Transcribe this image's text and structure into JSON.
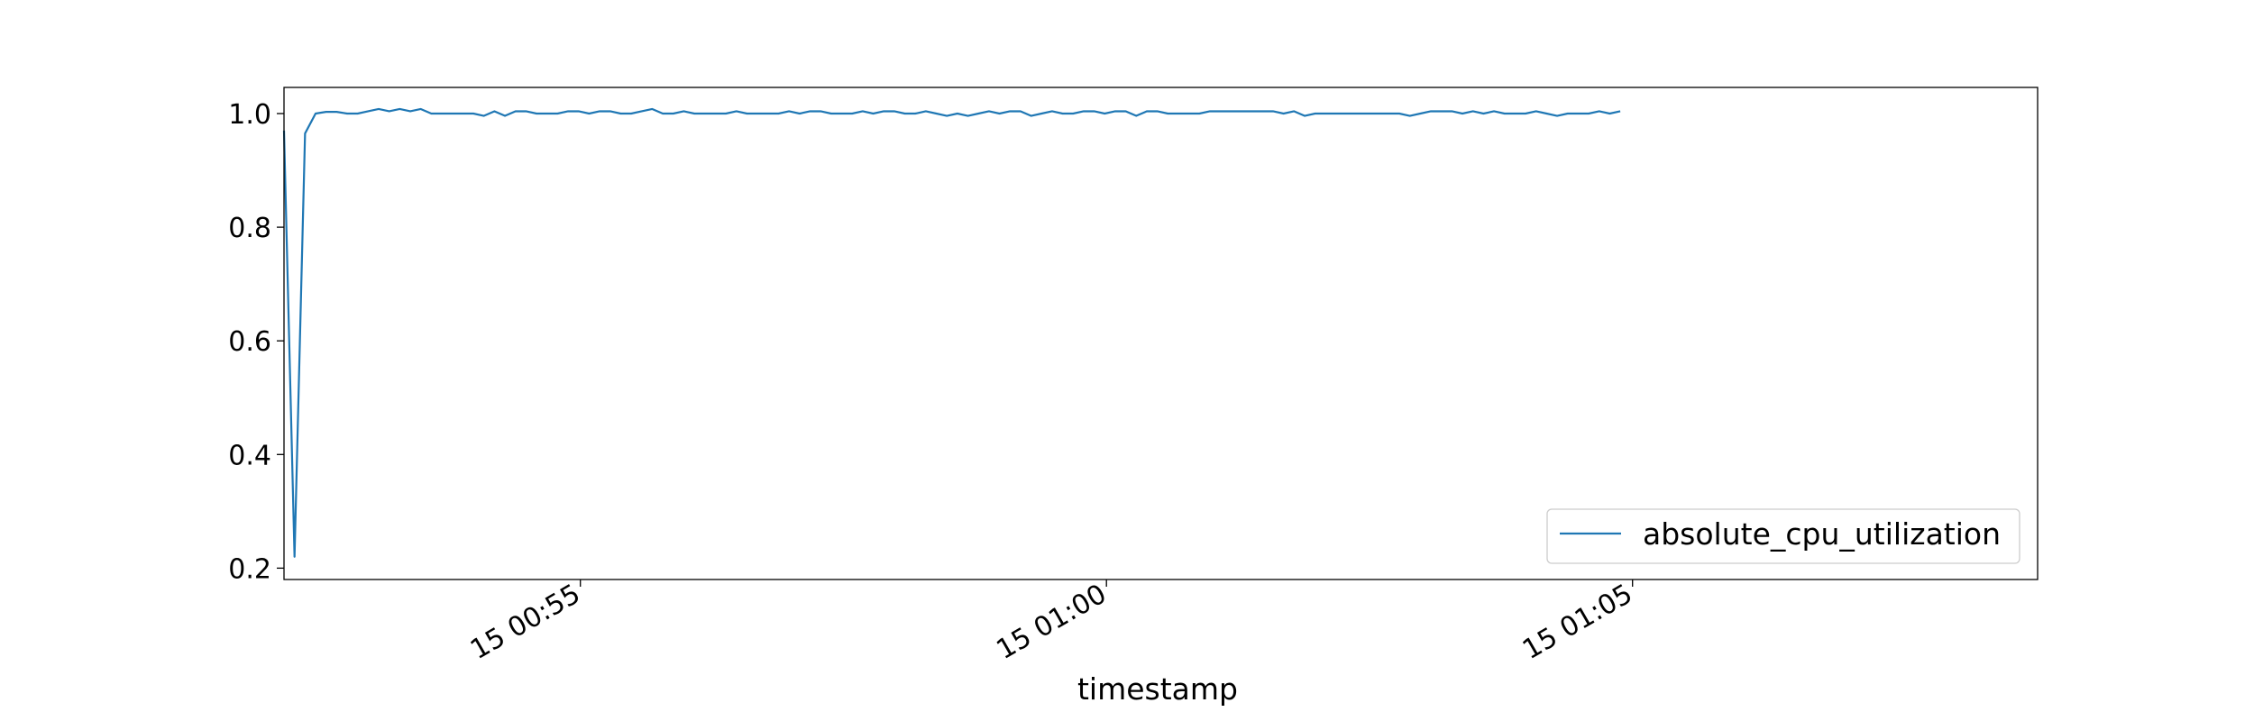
{
  "chart_data": {
    "type": "line",
    "xlabel": "timestamp",
    "ylabel": "",
    "title": "",
    "x_range": [
      "2023-01-15T00:52:11",
      "2023-01-15T01:08:51"
    ],
    "ylim": [
      0.18,
      1.046
    ],
    "y_ticks": [
      0.2,
      0.4,
      0.6,
      0.8,
      1.0
    ],
    "y_tick_labels": [
      "0.2",
      "0.4",
      "0.6",
      "0.8",
      "1.0"
    ],
    "x_ticks": [
      "2023-01-15T00:55:00",
      "2023-01-15T01:00:00",
      "2023-01-15T01:05:00"
    ],
    "x_tick_labels": [
      "15 00:55",
      "15 01:00",
      "15 01:05"
    ],
    "grid": false,
    "legend": {
      "position": "lower-right"
    },
    "series": [
      {
        "name": "absolute_cpu_utilization",
        "color": "#1f77b4",
        "x_start": "2023-01-15T00:52:11",
        "x_step_seconds": 6,
        "values": [
          0.97,
          0.22,
          0.965,
          1.0,
          1.003,
          1.003,
          1.0,
          1.0,
          1.004,
          1.008,
          1.004,
          1.008,
          1.004,
          1.008,
          1.0,
          1.0,
          1.0,
          1.0,
          1.0,
          0.996,
          1.004,
          0.996,
          1.004,
          1.004,
          1.0,
          1.0,
          1.0,
          1.004,
          1.004,
          1.0,
          1.004,
          1.004,
          1.0,
          1.0,
          1.004,
          1.008,
          1.0,
          1.0,
          1.004,
          1.0,
          1.0,
          1.0,
          1.0,
          1.004,
          1.0,
          1.0,
          1.0,
          1.0,
          1.004,
          1.0,
          1.004,
          1.004,
          1.0,
          1.0,
          1.0,
          1.004,
          1.0,
          1.004,
          1.004,
          1.0,
          1.0,
          1.004,
          1.0,
          0.996,
          1.0,
          0.996,
          1.0,
          1.004,
          1.0,
          1.004,
          1.004,
          0.996,
          1.0,
          1.004,
          1.0,
          1.0,
          1.004,
          1.004,
          1.0,
          1.004,
          1.004,
          0.996,
          1.004,
          1.004,
          1.0,
          1.0,
          1.0,
          1.0,
          1.004,
          1.004,
          1.004,
          1.004,
          1.004,
          1.004,
          1.004,
          1.0,
          1.004,
          0.996,
          1.0,
          1.0,
          1.0,
          1.0,
          1.0,
          1.0,
          1.0,
          1.0,
          1.0,
          0.996,
          1.0,
          1.004,
          1.004,
          1.004,
          1.0,
          1.004,
          1.0,
          1.004,
          1.0,
          1.0,
          1.0,
          1.004,
          1.0,
          0.996,
          1.0,
          1.0,
          1.0,
          1.004,
          1.0,
          1.004
        ]
      }
    ]
  }
}
